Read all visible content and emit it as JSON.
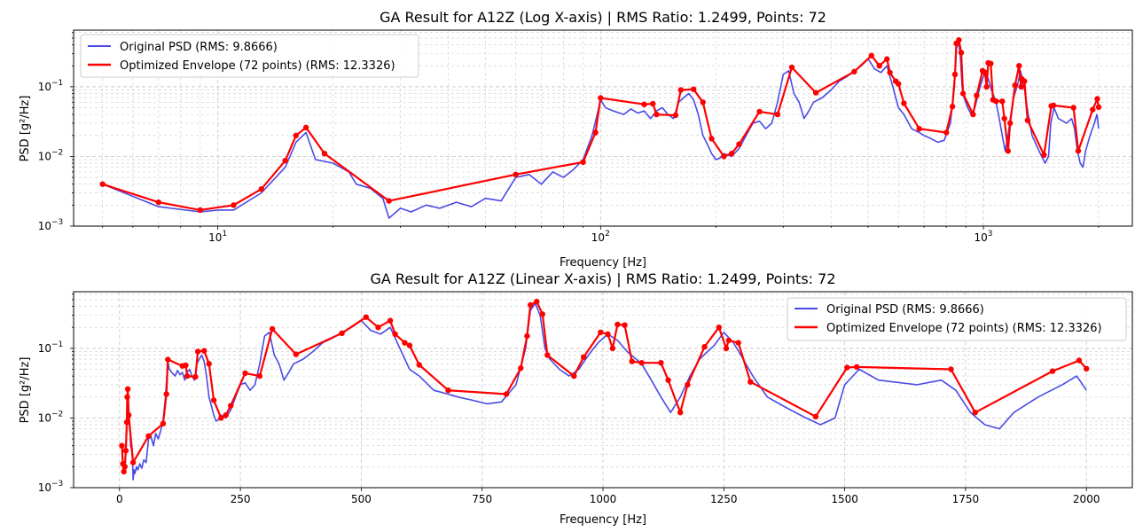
{
  "colors": {
    "original": "#4a4ae6",
    "envelope": "#ff0000",
    "grid": "#cccccc"
  },
  "legend": {
    "original_label": "Original PSD (RMS: 9.8666)",
    "envelope_label": "Optimized Envelope (72 points) (RMS: 12.3326)"
  },
  "chart_data": [
    {
      "type": "line",
      "title": "GA Result for A12Z (Log X-axis) | RMS Ratio: 1.2499, Points: 72",
      "xlabel": "Frequency [Hz]",
      "ylabel": "PSD [g²/Hz]",
      "xscale": "log",
      "yscale": "log",
      "xlim": [
        4.2,
        2450
      ],
      "ylim": [
        0.001,
        0.65
      ],
      "xticks": [
        {
          "value": 10,
          "base": "10",
          "exp": "1"
        },
        {
          "value": 100,
          "base": "10",
          "exp": "2"
        },
        {
          "value": 1000,
          "base": "10",
          "exp": "3"
        }
      ],
      "yticks": [
        {
          "value": 0.001,
          "base": "10",
          "exp": "−3"
        },
        {
          "value": 0.01,
          "base": "10",
          "exp": "−2"
        },
        {
          "value": 0.1,
          "base": "10",
          "exp": "−1"
        }
      ],
      "grid": true,
      "legend_position": "top-left"
    },
    {
      "type": "line",
      "title": "GA Result for A12Z (Linear X-axis) | RMS Ratio: 1.2499, Points: 72",
      "xlabel": "Frequency [Hz]",
      "ylabel": "PSD [g²/Hz]",
      "xscale": "linear",
      "yscale": "log",
      "xlim": [
        -95,
        2095
      ],
      "ylim": [
        0.001,
        0.65
      ],
      "xticks": [
        {
          "value": 0,
          "label": "0"
        },
        {
          "value": 250,
          "label": "250"
        },
        {
          "value": 500,
          "label": "500"
        },
        {
          "value": 750,
          "label": "750"
        },
        {
          "value": 1000,
          "label": "1000"
        },
        {
          "value": 1250,
          "label": "1250"
        },
        {
          "value": 1500,
          "label": "1500"
        },
        {
          "value": 1750,
          "label": "1750"
        },
        {
          "value": 2000,
          "label": "2000"
        }
      ],
      "yticks": [
        {
          "value": 0.001,
          "base": "10",
          "exp": "−3"
        },
        {
          "value": 0.01,
          "base": "10",
          "exp": "−2"
        },
        {
          "value": 0.1,
          "base": "10",
          "exp": "−1"
        }
      ],
      "grid": true,
      "legend_position": "top-right"
    }
  ],
  "series": {
    "original_psd": {
      "name": "Original PSD (RMS: 9.8666)",
      "points": [
        [
          5,
          0.004
        ],
        [
          7,
          0.0019
        ],
        [
          9,
          0.0016
        ],
        [
          10,
          0.0017
        ],
        [
          11,
          0.0017
        ],
        [
          13,
          0.003
        ],
        [
          15,
          0.007
        ],
        [
          16,
          0.016
        ],
        [
          17,
          0.022
        ],
        [
          18,
          0.009
        ],
        [
          20,
          0.008
        ],
        [
          22,
          0.006
        ],
        [
          23,
          0.004
        ],
        [
          25,
          0.0035
        ],
        [
          27,
          0.0025
        ],
        [
          28,
          0.0013
        ],
        [
          30,
          0.0018
        ],
        [
          32,
          0.0016
        ],
        [
          35,
          0.002
        ],
        [
          38,
          0.0018
        ],
        [
          42,
          0.0022
        ],
        [
          46,
          0.0019
        ],
        [
          50,
          0.0025
        ],
        [
          55,
          0.0023
        ],
        [
          60,
          0.005
        ],
        [
          65,
          0.0055
        ],
        [
          70,
          0.004
        ],
        [
          75,
          0.006
        ],
        [
          80,
          0.005
        ],
        [
          85,
          0.0065
        ],
        [
          90,
          0.009
        ],
        [
          95,
          0.02
        ],
        [
          98,
          0.04
        ],
        [
          100,
          0.065
        ],
        [
          103,
          0.05
        ],
        [
          108,
          0.045
        ],
        [
          115,
          0.04
        ],
        [
          120,
          0.048
        ],
        [
          125,
          0.042
        ],
        [
          130,
          0.045
        ],
        [
          135,
          0.035
        ],
        [
          140,
          0.045
        ],
        [
          145,
          0.05
        ],
        [
          150,
          0.04
        ],
        [
          155,
          0.035
        ],
        [
          160,
          0.06
        ],
        [
          165,
          0.07
        ],
        [
          170,
          0.08
        ],
        [
          175,
          0.065
        ],
        [
          180,
          0.04
        ],
        [
          185,
          0.02
        ],
        [
          190,
          0.015
        ],
        [
          195,
          0.011
        ],
        [
          200,
          0.009
        ],
        [
          205,
          0.0095
        ],
        [
          210,
          0.011
        ],
        [
          220,
          0.01
        ],
        [
          230,
          0.013
        ],
        [
          240,
          0.02
        ],
        [
          250,
          0.03
        ],
        [
          260,
          0.032
        ],
        [
          270,
          0.025
        ],
        [
          280,
          0.03
        ],
        [
          290,
          0.06
        ],
        [
          300,
          0.15
        ],
        [
          310,
          0.17
        ],
        [
          320,
          0.08
        ],
        [
          330,
          0.06
        ],
        [
          340,
          0.035
        ],
        [
          350,
          0.045
        ],
        [
          360,
          0.06
        ],
        [
          380,
          0.07
        ],
        [
          400,
          0.09
        ],
        [
          420,
          0.12
        ],
        [
          440,
          0.14
        ],
        [
          460,
          0.17
        ],
        [
          480,
          0.2
        ],
        [
          500,
          0.25
        ],
        [
          520,
          0.18
        ],
        [
          540,
          0.16
        ],
        [
          560,
          0.2
        ],
        [
          580,
          0.1
        ],
        [
          600,
          0.05
        ],
        [
          620,
          0.04
        ],
        [
          650,
          0.025
        ],
        [
          680,
          0.022
        ],
        [
          700,
          0.02
        ],
        [
          730,
          0.018
        ],
        [
          760,
          0.016
        ],
        [
          790,
          0.017
        ],
        [
          820,
          0.03
        ],
        [
          840,
          0.1
        ],
        [
          850,
          0.35
        ],
        [
          860,
          0.44
        ],
        [
          870,
          0.3
        ],
        [
          880,
          0.1
        ],
        [
          890,
          0.07
        ],
        [
          910,
          0.05
        ],
        [
          930,
          0.04
        ],
        [
          950,
          0.05
        ],
        [
          970,
          0.08
        ],
        [
          990,
          0.12
        ],
        [
          1010,
          0.16
        ],
        [
          1030,
          0.13
        ],
        [
          1050,
          0.09
        ],
        [
          1080,
          0.06
        ],
        [
          1100,
          0.035
        ],
        [
          1120,
          0.02
        ],
        [
          1140,
          0.012
        ],
        [
          1160,
          0.02
        ],
        [
          1180,
          0.04
        ],
        [
          1200,
          0.07
        ],
        [
          1230,
          0.11
        ],
        [
          1250,
          0.17
        ],
        [
          1270,
          0.12
        ],
        [
          1290,
          0.07
        ],
        [
          1310,
          0.04
        ],
        [
          1340,
          0.02
        ],
        [
          1380,
          0.014
        ],
        [
          1420,
          0.01
        ],
        [
          1450,
          0.008
        ],
        [
          1480,
          0.01
        ],
        [
          1500,
          0.03
        ],
        [
          1530,
          0.05
        ],
        [
          1570,
          0.035
        ],
        [
          1600,
          0.033
        ],
        [
          1650,
          0.03
        ],
        [
          1700,
          0.035
        ],
        [
          1730,
          0.025
        ],
        [
          1760,
          0.012
        ],
        [
          1790,
          0.008
        ],
        [
          1820,
          0.007
        ],
        [
          1850,
          0.012
        ],
        [
          1900,
          0.02
        ],
        [
          1950,
          0.03
        ],
        [
          1980,
          0.04
        ],
        [
          2000,
          0.025
        ]
      ]
    },
    "optimized_envelope": {
      "name": "Optimized Envelope (72 points) (RMS: 12.3326)",
      "points": [
        [
          5,
          0.004
        ],
        [
          7,
          0.0022
        ],
        [
          9,
          0.0017
        ],
        [
          11,
          0.002
        ],
        [
          13,
          0.0034
        ],
        [
          15,
          0.0087
        ],
        [
          16,
          0.02
        ],
        [
          17,
          0.026
        ],
        [
          19,
          0.011
        ],
        [
          28,
          0.0023
        ],
        [
          60,
          0.0055
        ],
        [
          90,
          0.0083
        ],
        [
          97,
          0.022
        ],
        [
          100,
          0.069
        ],
        [
          130,
          0.056
        ],
        [
          137,
          0.057
        ],
        [
          140,
          0.04
        ],
        [
          157,
          0.039
        ],
        [
          162,
          0.09
        ],
        [
          175,
          0.092
        ],
        [
          185,
          0.06
        ],
        [
          195,
          0.018
        ],
        [
          210,
          0.01
        ],
        [
          220,
          0.011
        ],
        [
          230,
          0.015
        ],
        [
          260,
          0.044
        ],
        [
          290,
          0.04
        ],
        [
          316,
          0.19
        ],
        [
          365,
          0.082
        ],
        [
          460,
          0.165
        ],
        [
          510,
          0.28
        ],
        [
          535,
          0.2
        ],
        [
          560,
          0.25
        ],
        [
          570,
          0.16
        ],
        [
          590,
          0.12
        ],
        [
          600,
          0.11
        ],
        [
          620,
          0.058
        ],
        [
          680,
          0.025
        ],
        [
          800,
          0.022
        ],
        [
          830,
          0.052
        ],
        [
          843,
          0.15
        ],
        [
          850,
          0.42
        ],
        [
          863,
          0.47
        ],
        [
          875,
          0.31
        ],
        [
          885,
          0.08
        ],
        [
          940,
          0.04
        ],
        [
          960,
          0.075
        ],
        [
          995,
          0.17
        ],
        [
          1010,
          0.16
        ],
        [
          1020,
          0.1
        ],
        [
          1030,
          0.22
        ],
        [
          1045,
          0.215
        ],
        [
          1060,
          0.065
        ],
        [
          1080,
          0.062
        ],
        [
          1120,
          0.062
        ],
        [
          1135,
          0.035
        ],
        [
          1160,
          0.012
        ],
        [
          1175,
          0.03
        ],
        [
          1210,
          0.105
        ],
        [
          1240,
          0.2
        ],
        [
          1255,
          0.1
        ],
        [
          1260,
          0.13
        ],
        [
          1280,
          0.12
        ],
        [
          1305,
          0.033
        ],
        [
          1440,
          0.0105
        ],
        [
          1505,
          0.053
        ],
        [
          1525,
          0.054
        ],
        [
          1720,
          0.05
        ],
        [
          1770,
          0.012
        ],
        [
          1930,
          0.047
        ],
        [
          1985,
          0.067
        ],
        [
          2000,
          0.051
        ]
      ]
    }
  }
}
